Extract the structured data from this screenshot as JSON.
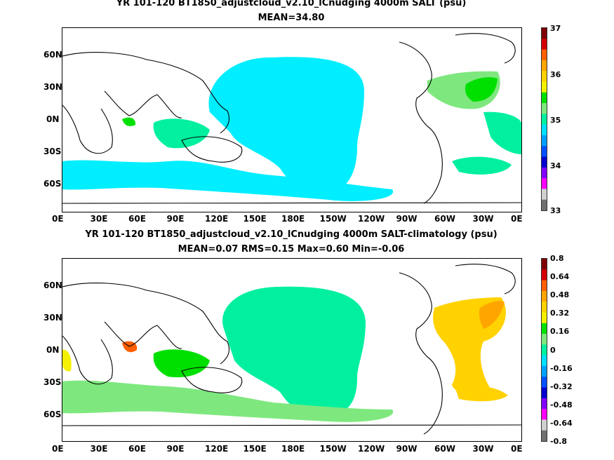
{
  "panels": [
    {
      "title_line1": "YR 101-120 BT1850_adjustcloud_v2.10_lCnudging 4000m SALT (psu)",
      "title_line2": "MEAN=34.80"
    },
    {
      "title_line1": "YR 101-120 BT1850_adjustcloud_v2.10_lCnudging 4000m SALT-climatology (psu)",
      "title_line2": "MEAN=0.07   RMS=0.15   Max=0.60   Min=-0.06"
    }
  ],
  "chart_data": [
    {
      "type": "heatmap",
      "title": "YR 101-120 BT1850_adjustcloud_v2.10_lCnudging 4000m SALT (psu)",
      "subtitle": "MEAN=34.80",
      "x_ticks": [
        "0E",
        "30E",
        "60E",
        "90E",
        "120E",
        "150E",
        "180E",
        "150W",
        "120W",
        "90W",
        "60W",
        "30W",
        "0E"
      ],
      "y_ticks": [
        "60N",
        "30N",
        "0N",
        "30S",
        "60S"
      ],
      "colorbar_ticks": [
        "37",
        "36",
        "35",
        "34",
        "33"
      ],
      "colorbar_range": [
        33,
        37
      ],
      "colorbar_colors": [
        "#7f0000",
        "#d40000",
        "#ff5f00",
        "#ffa500",
        "#ffd200",
        "#f5f000",
        "#00e000",
        "#7ee87e",
        "#00f0a0",
        "#00e0ff",
        "#00a0ff",
        "#0050ff",
        "#0000d0",
        "#8000ff",
        "#ff00ff",
        "#d0d0d0",
        "#707070"
      ]
    },
    {
      "type": "heatmap",
      "title": "YR 101-120 BT1850_adjustcloud_v2.10_lCnudging 4000m SALT-climatology (psu)",
      "subtitle": "MEAN=0.07   RMS=0.15   Max=0.60   Min=-0.06",
      "stats": {
        "MEAN": 0.07,
        "RMS": 0.15,
        "Max": 0.6,
        "Min": -0.06
      },
      "x_ticks": [
        "0E",
        "30E",
        "60E",
        "90E",
        "120E",
        "150E",
        "180E",
        "150W",
        "120W",
        "90W",
        "60W",
        "30W",
        "0E"
      ],
      "y_ticks": [
        "60N",
        "30N",
        "0N",
        "30S",
        "60S"
      ],
      "colorbar_ticks": [
        "0.8",
        "0.64",
        "0.48",
        "0.32",
        "0.16",
        "0",
        "-0.16",
        "-0.32",
        "-0.48",
        "-0.64",
        "-0.8"
      ],
      "colorbar_range": [
        -0.8,
        0.8
      ],
      "colorbar_colors": [
        "#7f0000",
        "#d40000",
        "#ff5f00",
        "#ffa500",
        "#ffd200",
        "#f5f000",
        "#00e000",
        "#7ee87e",
        "#00f0a0",
        "#00e0ff",
        "#00a0ff",
        "#0050ff",
        "#0000d0",
        "#8000ff",
        "#ff00ff",
        "#d0d0d0",
        "#707070"
      ]
    }
  ]
}
